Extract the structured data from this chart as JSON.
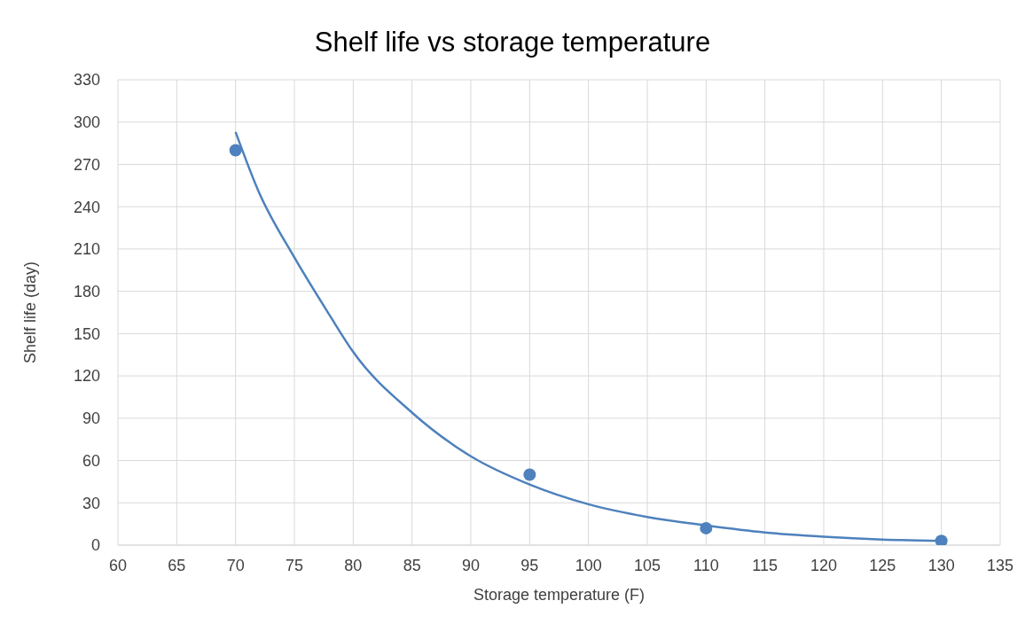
{
  "chart_data": {
    "type": "scatter",
    "title": "Shelf life vs storage temperature",
    "xlabel": "Storage temperature (F)",
    "ylabel": "Shelf life (day)",
    "xlim": [
      60,
      135
    ],
    "xticks": [
      60,
      65,
      70,
      75,
      80,
      85,
      90,
      95,
      100,
      105,
      110,
      115,
      120,
      125,
      130,
      135
    ],
    "ylim": [
      0,
      330
    ],
    "yticks": [
      0,
      30,
      60,
      90,
      120,
      150,
      180,
      210,
      240,
      270,
      300,
      330
    ],
    "grid": true,
    "legend": false,
    "series": [
      {
        "marker": "circle",
        "color": "#4e81bd",
        "x": [
          70,
          95,
          110,
          130
        ],
        "values": [
          280,
          50,
          12,
          3
        ]
      },
      {
        "type": "line",
        "marker": "none",
        "color": "#4e81bd",
        "x": [
          70,
          72,
          75,
          78,
          80,
          85,
          90,
          95,
          100,
          105,
          110,
          115,
          120,
          125,
          130
        ],
        "values": [
          293,
          250,
          204,
          163,
          137,
          94,
          63,
          43,
          29,
          20,
          14,
          9,
          6,
          4,
          3
        ]
      }
    ]
  }
}
